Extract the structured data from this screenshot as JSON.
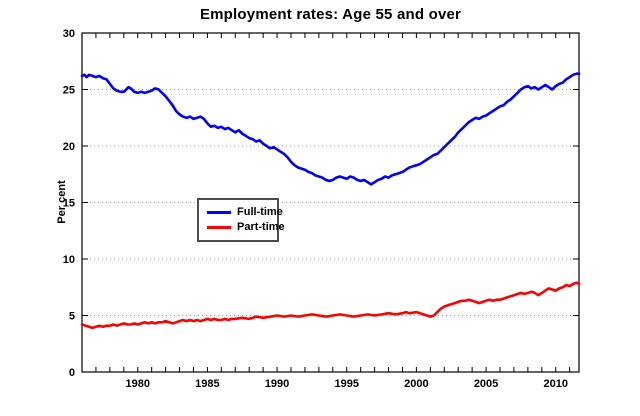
{
  "title": "Employment rates: Age 55 and over",
  "y_axis_label": "Per cent",
  "colors": {
    "full_time": "#0000FF",
    "part_time": "#FF0000",
    "grid": "#9c9c9c",
    "axis": "#000000",
    "legend_border": "#4d4d4d",
    "background": "#ffffff"
  },
  "legend": {
    "items": [
      {
        "label": "Full-time",
        "color": "#0000FF"
      },
      {
        "label": "Part-time",
        "color": "#FF0000"
      }
    ]
  },
  "chart_data": {
    "type": "line",
    "title": "Employment rates: Age 55 and over",
    "xlabel": "",
    "ylabel": "Per cent",
    "xlim": [
      1976,
      2011.67
    ],
    "ylim": [
      0,
      30
    ],
    "yticks": [
      0,
      5,
      10,
      15,
      20,
      25,
      30
    ],
    "xticks_labeled": [
      1980,
      1985,
      1990,
      1995,
      2000,
      2005,
      2010
    ],
    "xtick_minor_interval": 1,
    "grid": "horizontal dotted at y = 5,10,15,20,25",
    "legend_position": "inside center-left",
    "series": [
      {
        "name": "Full-time",
        "color": "#0000FF",
        "points": [
          [
            1976.0,
            26.2
          ],
          [
            1976.17,
            26.3
          ],
          [
            1976.33,
            26.1
          ],
          [
            1976.5,
            26.3
          ],
          [
            1976.75,
            26.2
          ],
          [
            1977.0,
            26.1
          ],
          [
            1977.25,
            26.2
          ],
          [
            1977.5,
            26.0
          ],
          [
            1977.75,
            25.9
          ],
          [
            1978.0,
            25.5
          ],
          [
            1978.25,
            25.1
          ],
          [
            1978.5,
            24.9
          ],
          [
            1978.75,
            24.8
          ],
          [
            1979.0,
            24.8
          ],
          [
            1979.17,
            25.0
          ],
          [
            1979.33,
            25.2
          ],
          [
            1979.5,
            25.1
          ],
          [
            1979.75,
            24.8
          ],
          [
            1980.0,
            24.7
          ],
          [
            1980.25,
            24.8
          ],
          [
            1980.5,
            24.7
          ],
          [
            1980.75,
            24.8
          ],
          [
            1981.0,
            24.9
          ],
          [
            1981.25,
            25.1
          ],
          [
            1981.5,
            25.0
          ],
          [
            1981.75,
            24.7
          ],
          [
            1982.0,
            24.4
          ],
          [
            1982.25,
            24.0
          ],
          [
            1982.5,
            23.6
          ],
          [
            1982.75,
            23.1
          ],
          [
            1983.0,
            22.8
          ],
          [
            1983.25,
            22.6
          ],
          [
            1983.5,
            22.5
          ],
          [
            1983.75,
            22.6
          ],
          [
            1984.0,
            22.4
          ],
          [
            1984.25,
            22.5
          ],
          [
            1984.5,
            22.6
          ],
          [
            1984.75,
            22.4
          ],
          [
            1985.0,
            22.0
          ],
          [
            1985.25,
            21.7
          ],
          [
            1985.5,
            21.8
          ],
          [
            1985.75,
            21.6
          ],
          [
            1986.0,
            21.7
          ],
          [
            1986.25,
            21.5
          ],
          [
            1986.5,
            21.6
          ],
          [
            1986.75,
            21.4
          ],
          [
            1987.0,
            21.2
          ],
          [
            1987.25,
            21.4
          ],
          [
            1987.5,
            21.1
          ],
          [
            1987.75,
            20.9
          ],
          [
            1988.0,
            20.7
          ],
          [
            1988.25,
            20.6
          ],
          [
            1988.5,
            20.4
          ],
          [
            1988.75,
            20.5
          ],
          [
            1989.0,
            20.2
          ],
          [
            1989.25,
            20.0
          ],
          [
            1989.5,
            19.8
          ],
          [
            1989.75,
            19.9
          ],
          [
            1990.0,
            19.7
          ],
          [
            1990.25,
            19.5
          ],
          [
            1990.5,
            19.3
          ],
          [
            1990.75,
            19.0
          ],
          [
            1991.0,
            18.6
          ],
          [
            1991.25,
            18.3
          ],
          [
            1991.5,
            18.1
          ],
          [
            1991.75,
            18.0
          ],
          [
            1992.0,
            17.9
          ],
          [
            1992.25,
            17.7
          ],
          [
            1992.5,
            17.6
          ],
          [
            1992.75,
            17.4
          ],
          [
            1993.0,
            17.3
          ],
          [
            1993.25,
            17.2
          ],
          [
            1993.5,
            17.0
          ],
          [
            1993.75,
            16.9
          ],
          [
            1994.0,
            17.0
          ],
          [
            1994.25,
            17.2
          ],
          [
            1994.5,
            17.3
          ],
          [
            1994.75,
            17.2
          ],
          [
            1995.0,
            17.1
          ],
          [
            1995.25,
            17.3
          ],
          [
            1995.5,
            17.2
          ],
          [
            1995.75,
            17.0
          ],
          [
            1996.0,
            16.9
          ],
          [
            1996.25,
            17.0
          ],
          [
            1996.5,
            16.8
          ],
          [
            1996.75,
            16.6
          ],
          [
            1997.0,
            16.8
          ],
          [
            1997.25,
            17.0
          ],
          [
            1997.5,
            17.1
          ],
          [
            1997.75,
            17.3
          ],
          [
            1998.0,
            17.2
          ],
          [
            1998.25,
            17.4
          ],
          [
            1998.5,
            17.5
          ],
          [
            1998.75,
            17.6
          ],
          [
            1999.0,
            17.7
          ],
          [
            1999.25,
            17.9
          ],
          [
            1999.5,
            18.1
          ],
          [
            1999.75,
            18.2
          ],
          [
            2000.0,
            18.3
          ],
          [
            2000.25,
            18.4
          ],
          [
            2000.5,
            18.6
          ],
          [
            2000.75,
            18.8
          ],
          [
            2001.0,
            19.0
          ],
          [
            2001.25,
            19.2
          ],
          [
            2001.5,
            19.3
          ],
          [
            2001.75,
            19.6
          ],
          [
            2002.0,
            19.9
          ],
          [
            2002.25,
            20.2
          ],
          [
            2002.5,
            20.5
          ],
          [
            2002.75,
            20.8
          ],
          [
            2003.0,
            21.2
          ],
          [
            2003.25,
            21.5
          ],
          [
            2003.5,
            21.8
          ],
          [
            2003.75,
            22.1
          ],
          [
            2004.0,
            22.3
          ],
          [
            2004.25,
            22.5
          ],
          [
            2004.5,
            22.4
          ],
          [
            2004.75,
            22.6
          ],
          [
            2005.0,
            22.7
          ],
          [
            2005.25,
            22.9
          ],
          [
            2005.5,
            23.1
          ],
          [
            2005.75,
            23.3
          ],
          [
            2006.0,
            23.5
          ],
          [
            2006.25,
            23.6
          ],
          [
            2006.5,
            23.9
          ],
          [
            2006.75,
            24.1
          ],
          [
            2007.0,
            24.4
          ],
          [
            2007.25,
            24.7
          ],
          [
            2007.5,
            25.0
          ],
          [
            2007.75,
            25.2
          ],
          [
            2008.0,
            25.3
          ],
          [
            2008.25,
            25.1
          ],
          [
            2008.5,
            25.2
          ],
          [
            2008.75,
            25.0
          ],
          [
            2009.0,
            25.2
          ],
          [
            2009.25,
            25.4
          ],
          [
            2009.5,
            25.2
          ],
          [
            2009.75,
            25.0
          ],
          [
            2010.0,
            25.3
          ],
          [
            2010.25,
            25.5
          ],
          [
            2010.5,
            25.6
          ],
          [
            2010.75,
            25.9
          ],
          [
            2011.0,
            26.1
          ],
          [
            2011.25,
            26.3
          ],
          [
            2011.5,
            26.4
          ],
          [
            2011.67,
            26.4
          ]
        ]
      },
      {
        "name": "Part-time",
        "color": "#FF0000",
        "points": [
          [
            1976.0,
            4.2
          ],
          [
            1976.25,
            4.1
          ],
          [
            1976.5,
            4.0
          ],
          [
            1976.75,
            3.9
          ],
          [
            1977.0,
            4.0
          ],
          [
            1977.25,
            4.1
          ],
          [
            1977.5,
            4.0
          ],
          [
            1977.75,
            4.1
          ],
          [
            1978.0,
            4.1
          ],
          [
            1978.25,
            4.2
          ],
          [
            1978.5,
            4.1
          ],
          [
            1978.75,
            4.2
          ],
          [
            1979.0,
            4.3
          ],
          [
            1979.25,
            4.2
          ],
          [
            1979.5,
            4.2
          ],
          [
            1979.75,
            4.3
          ],
          [
            1980.0,
            4.2
          ],
          [
            1980.25,
            4.3
          ],
          [
            1980.5,
            4.4
          ],
          [
            1980.75,
            4.3
          ],
          [
            1981.0,
            4.4
          ],
          [
            1981.25,
            4.3
          ],
          [
            1981.5,
            4.4
          ],
          [
            1981.75,
            4.4
          ],
          [
            1982.0,
            4.5
          ],
          [
            1982.25,
            4.4
          ],
          [
            1982.5,
            4.3
          ],
          [
            1982.75,
            4.4
          ],
          [
            1983.0,
            4.5
          ],
          [
            1983.25,
            4.6
          ],
          [
            1983.5,
            4.5
          ],
          [
            1983.75,
            4.6
          ],
          [
            1984.0,
            4.5
          ],
          [
            1984.25,
            4.6
          ],
          [
            1984.5,
            4.5
          ],
          [
            1984.75,
            4.6
          ],
          [
            1985.0,
            4.7
          ],
          [
            1985.25,
            4.6
          ],
          [
            1985.5,
            4.7
          ],
          [
            1985.75,
            4.6
          ],
          [
            1986.0,
            4.6
          ],
          [
            1986.25,
            4.7
          ],
          [
            1986.5,
            4.6
          ],
          [
            1986.75,
            4.7
          ],
          [
            1987.0,
            4.7
          ],
          [
            1987.5,
            4.8
          ],
          [
            1988.0,
            4.7
          ],
          [
            1988.25,
            4.8
          ],
          [
            1988.5,
            4.9
          ],
          [
            1989.0,
            4.8
          ],
          [
            1989.5,
            4.9
          ],
          [
            1990.0,
            5.0
          ],
          [
            1990.5,
            4.9
          ],
          [
            1991.0,
            5.0
          ],
          [
            1991.5,
            4.9
          ],
          [
            1992.0,
            5.0
          ],
          [
            1992.5,
            5.1
          ],
          [
            1993.0,
            5.0
          ],
          [
            1993.5,
            4.9
          ],
          [
            1994.0,
            5.0
          ],
          [
            1994.5,
            5.1
          ],
          [
            1995.0,
            5.0
          ],
          [
            1995.5,
            4.9
          ],
          [
            1996.0,
            5.0
          ],
          [
            1996.5,
            5.1
          ],
          [
            1997.0,
            5.0
          ],
          [
            1997.5,
            5.1
          ],
          [
            1998.0,
            5.2
          ],
          [
            1998.5,
            5.1
          ],
          [
            1999.0,
            5.2
          ],
          [
            1999.25,
            5.3
          ],
          [
            1999.5,
            5.2
          ],
          [
            2000.0,
            5.3
          ],
          [
            2000.5,
            5.1
          ],
          [
            2000.75,
            5.0
          ],
          [
            2001.0,
            4.9
          ],
          [
            2001.25,
            5.0
          ],
          [
            2001.5,
            5.3
          ],
          [
            2001.75,
            5.6
          ],
          [
            2002.0,
            5.8
          ],
          [
            2002.25,
            5.9
          ],
          [
            2002.5,
            6.0
          ],
          [
            2002.75,
            6.1
          ],
          [
            2003.0,
            6.2
          ],
          [
            2003.25,
            6.3
          ],
          [
            2003.5,
            6.3
          ],
          [
            2003.75,
            6.4
          ],
          [
            2004.0,
            6.3
          ],
          [
            2004.25,
            6.2
          ],
          [
            2004.5,
            6.1
          ],
          [
            2004.75,
            6.2
          ],
          [
            2005.0,
            6.3
          ],
          [
            2005.25,
            6.4
          ],
          [
            2005.5,
            6.3
          ],
          [
            2005.75,
            6.4
          ],
          [
            2006.0,
            6.4
          ],
          [
            2006.25,
            6.5
          ],
          [
            2006.5,
            6.6
          ],
          [
            2006.75,
            6.7
          ],
          [
            2007.0,
            6.8
          ],
          [
            2007.25,
            6.9
          ],
          [
            2007.5,
            7.0
          ],
          [
            2007.75,
            6.9
          ],
          [
            2008.0,
            7.0
          ],
          [
            2008.25,
            7.1
          ],
          [
            2008.5,
            7.0
          ],
          [
            2008.75,
            6.8
          ],
          [
            2009.0,
            7.0
          ],
          [
            2009.25,
            7.2
          ],
          [
            2009.5,
            7.4
          ],
          [
            2009.75,
            7.3
          ],
          [
            2010.0,
            7.2
          ],
          [
            2010.25,
            7.4
          ],
          [
            2010.5,
            7.5
          ],
          [
            2010.75,
            7.7
          ],
          [
            2011.0,
            7.6
          ],
          [
            2011.25,
            7.8
          ],
          [
            2011.5,
            7.9
          ],
          [
            2011.67,
            7.8
          ]
        ]
      }
    ]
  }
}
